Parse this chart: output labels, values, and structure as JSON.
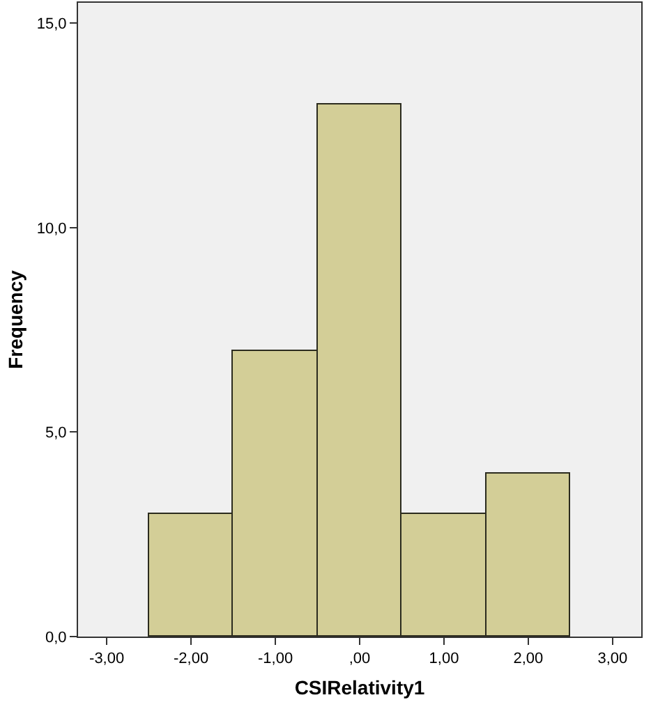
{
  "chart_data": {
    "type": "histogram",
    "xlabel": "CSIRelativity1",
    "ylabel": "Frequency",
    "bins": [
      -2.5,
      -1.5,
      -0.5,
      0.5,
      1.5,
      2.5
    ],
    "values": [
      3,
      7,
      13,
      3,
      4
    ],
    "color": "#d3ce97",
    "xlim": [
      -3.34,
      3.34
    ],
    "xticks": [
      {
        "value": -3,
        "label": "-3,00"
      },
      {
        "value": -2,
        "label": "-2,00"
      },
      {
        "value": -1,
        "label": "-1,00"
      },
      {
        "value": 0,
        "label": ",00"
      },
      {
        "value": 1,
        "label": "1,00"
      },
      {
        "value": 2,
        "label": "2,00"
      },
      {
        "value": 3,
        "label": "3,00"
      }
    ],
    "ylim": [
      0,
      15.5
    ],
    "yticks": [
      {
        "value": 0,
        "label": "0,0"
      },
      {
        "value": 5,
        "label": "5,0"
      },
      {
        "value": 10,
        "label": "10,0"
      },
      {
        "value": 15,
        "label": "15,0"
      }
    ]
  }
}
